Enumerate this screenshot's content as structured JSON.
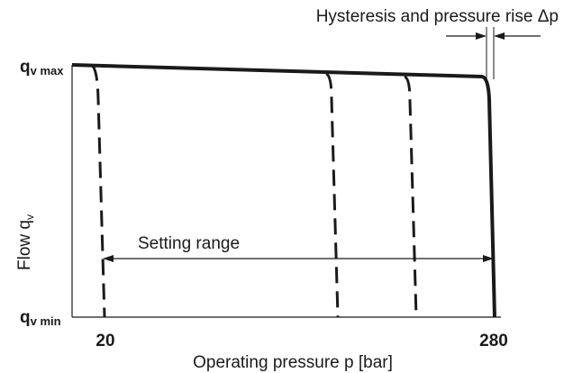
{
  "annotation": "Hysteresis and pressure rise Δp",
  "y_axis": {
    "label": {
      "main": "Flow q",
      "sub": "v"
    },
    "max_label": {
      "main": "q",
      "sub": "v max"
    },
    "min_label": {
      "main": "q",
      "sub": "v min"
    }
  },
  "x_axis": {
    "label": "Operating pressure p [bar]",
    "ticks": [
      "20",
      "280"
    ]
  },
  "range_label": "Setting range"
}
